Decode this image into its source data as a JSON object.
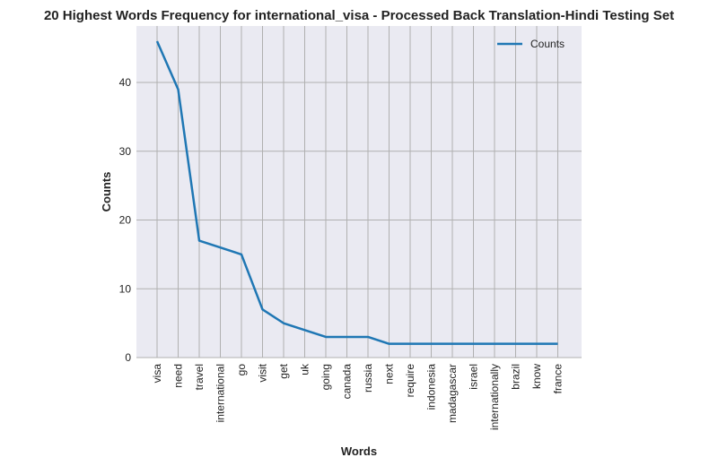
{
  "chart_data": {
    "type": "line",
    "title": "20 Highest Words Frequency for international_visa - Processed Back Translation-Hindi Testing Set",
    "xlabel": "Words",
    "ylabel": "Counts",
    "categories": [
      "visa",
      "need",
      "travel",
      "international",
      "go",
      "visit",
      "get",
      "uk",
      "going",
      "canada",
      "russia",
      "next",
      "require",
      "indonesia",
      "madagascar",
      "israel",
      "internationally",
      "brazil",
      "know",
      "france"
    ],
    "series": [
      {
        "name": "Counts",
        "values": [
          46,
          39,
          17,
          16,
          15,
          7,
          5,
          4,
          3,
          3,
          3,
          2,
          2,
          2,
          2,
          2,
          2,
          2,
          2,
          2
        ]
      }
    ],
    "ylim": [
      0,
      46
    ],
    "yticks": [
      0,
      10,
      20,
      30,
      40
    ],
    "grid": true,
    "legend": "top-right",
    "colors": {
      "line": "#1f77b4",
      "plot_bg": "#eaeaf2",
      "grid": "#b0b0b0"
    }
  }
}
